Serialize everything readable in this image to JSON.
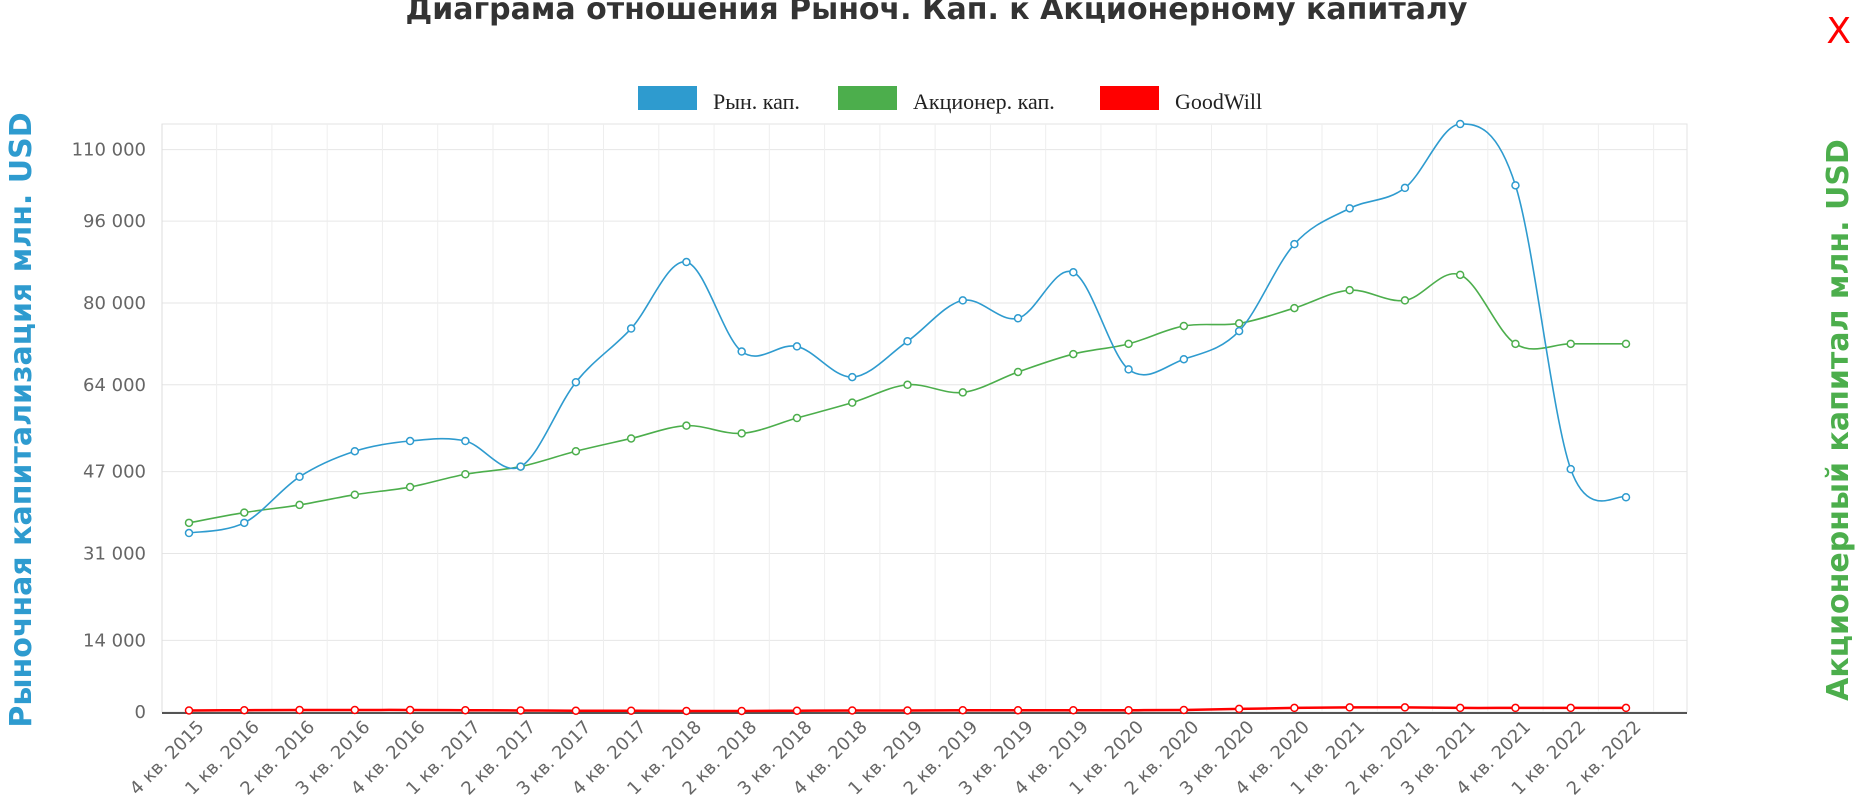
{
  "close_label": "X",
  "chart_data": {
    "type": "line",
    "title": "Диаграма отношения Рыноч. Кап. к Акционерному капиталу",
    "ylabel": "Рыночная капитализация млн. USD",
    "y2label": "Акционерный капитал млн. USD",
    "ylim": [
      0,
      115000
    ],
    "yticks": [
      0,
      14000,
      31000,
      47000,
      64000,
      80000,
      96000,
      110000
    ],
    "ytick_labels": [
      "0",
      "14 000",
      "31 000",
      "47 000",
      "64 000",
      "80 000",
      "96 000",
      "110 000"
    ],
    "grid": true,
    "legend_position": "top-center",
    "categories": [
      "4 кв. 2015",
      "1 кв. 2016",
      "2 кв. 2016",
      "3 кв. 2016",
      "4 кв. 2016",
      "1 кв. 2017",
      "2 кв. 2017",
      "3 кв. 2017",
      "4 кв. 2017",
      "1 кв. 2018",
      "2 кв. 2018",
      "3 кв. 2018",
      "4 кв. 2018",
      "1 кв. 2019",
      "2 кв. 2019",
      "3 кв. 2019",
      "4 кв. 2019",
      "1 кв. 2020",
      "2 кв. 2020",
      "3 кв. 2020",
      "4 кв. 2020",
      "1 кв. 2021",
      "2 кв. 2021",
      "3 кв. 2021",
      "4 кв. 2021",
      "1 кв. 2022",
      "2 кв. 2022"
    ],
    "series": [
      {
        "name": "Рын. кап.",
        "color": "#2e9bcf",
        "values": [
          35000,
          37000,
          46000,
          51000,
          53000,
          53000,
          48000,
          64500,
          75000,
          88000,
          70500,
          71500,
          65500,
          72500,
          80500,
          77000,
          86000,
          67000,
          69000,
          74500,
          91500,
          98500,
          102500,
          115000,
          103000,
          47500,
          42000
        ]
      },
      {
        "name": "Акционер. кап.",
        "color": "#4cae4c",
        "values": [
          37000,
          39000,
          40500,
          42500,
          44000,
          46500,
          48000,
          51000,
          53500,
          56000,
          54500,
          57500,
          60500,
          64000,
          62500,
          66500,
          70000,
          72000,
          75500,
          76000,
          79000,
          82500,
          80500,
          85500,
          72000,
          72000,
          72000
        ]
      },
      {
        "name": "GoodWill",
        "color": "#ff0000",
        "values": [
          300,
          350,
          400,
          400,
          400,
          350,
          300,
          250,
          250,
          200,
          200,
          250,
          300,
          300,
          350,
          350,
          350,
          350,
          400,
          600,
          800,
          900,
          900,
          800,
          800,
          800,
          800
        ]
      }
    ]
  }
}
